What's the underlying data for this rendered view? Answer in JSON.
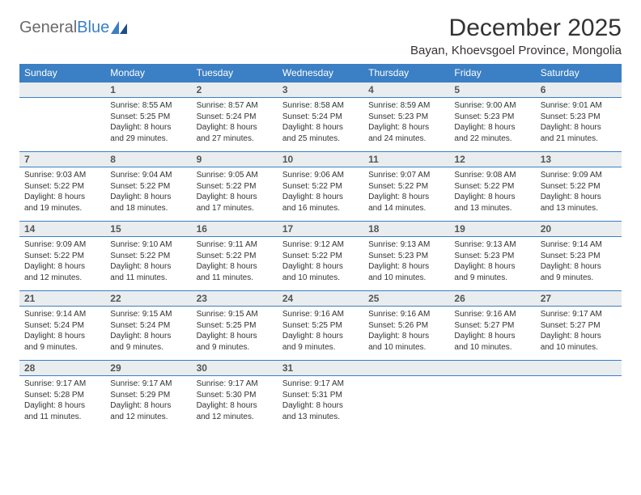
{
  "logo": {
    "text_gray": "General",
    "text_blue": "Blue"
  },
  "header": {
    "month_title": "December 2025",
    "location": "Bayan, Khoevsgoel Province, Mongolia"
  },
  "colors": {
    "header_band": "#3b7fc4",
    "daynum_bg": "#e9edf0",
    "rule": "#3b7fc4",
    "text": "#333333",
    "logo_gray": "#6a6a6a",
    "logo_blue": "#3b7fc4",
    "white": "#ffffff"
  },
  "days_of_week": [
    "Sunday",
    "Monday",
    "Tuesday",
    "Wednesday",
    "Thursday",
    "Friday",
    "Saturday"
  ],
  "weeks": [
    [
      null,
      {
        "n": "1",
        "sr": "Sunrise: 8:55 AM",
        "ss": "Sunset: 5:25 PM",
        "d1": "Daylight: 8 hours",
        "d2": "and 29 minutes."
      },
      {
        "n": "2",
        "sr": "Sunrise: 8:57 AM",
        "ss": "Sunset: 5:24 PM",
        "d1": "Daylight: 8 hours",
        "d2": "and 27 minutes."
      },
      {
        "n": "3",
        "sr": "Sunrise: 8:58 AM",
        "ss": "Sunset: 5:24 PM",
        "d1": "Daylight: 8 hours",
        "d2": "and 25 minutes."
      },
      {
        "n": "4",
        "sr": "Sunrise: 8:59 AM",
        "ss": "Sunset: 5:23 PM",
        "d1": "Daylight: 8 hours",
        "d2": "and 24 minutes."
      },
      {
        "n": "5",
        "sr": "Sunrise: 9:00 AM",
        "ss": "Sunset: 5:23 PM",
        "d1": "Daylight: 8 hours",
        "d2": "and 22 minutes."
      },
      {
        "n": "6",
        "sr": "Sunrise: 9:01 AM",
        "ss": "Sunset: 5:23 PM",
        "d1": "Daylight: 8 hours",
        "d2": "and 21 minutes."
      }
    ],
    [
      {
        "n": "7",
        "sr": "Sunrise: 9:03 AM",
        "ss": "Sunset: 5:22 PM",
        "d1": "Daylight: 8 hours",
        "d2": "and 19 minutes."
      },
      {
        "n": "8",
        "sr": "Sunrise: 9:04 AM",
        "ss": "Sunset: 5:22 PM",
        "d1": "Daylight: 8 hours",
        "d2": "and 18 minutes."
      },
      {
        "n": "9",
        "sr": "Sunrise: 9:05 AM",
        "ss": "Sunset: 5:22 PM",
        "d1": "Daylight: 8 hours",
        "d2": "and 17 minutes."
      },
      {
        "n": "10",
        "sr": "Sunrise: 9:06 AM",
        "ss": "Sunset: 5:22 PM",
        "d1": "Daylight: 8 hours",
        "d2": "and 16 minutes."
      },
      {
        "n": "11",
        "sr": "Sunrise: 9:07 AM",
        "ss": "Sunset: 5:22 PM",
        "d1": "Daylight: 8 hours",
        "d2": "and 14 minutes."
      },
      {
        "n": "12",
        "sr": "Sunrise: 9:08 AM",
        "ss": "Sunset: 5:22 PM",
        "d1": "Daylight: 8 hours",
        "d2": "and 13 minutes."
      },
      {
        "n": "13",
        "sr": "Sunrise: 9:09 AM",
        "ss": "Sunset: 5:22 PM",
        "d1": "Daylight: 8 hours",
        "d2": "and 13 minutes."
      }
    ],
    [
      {
        "n": "14",
        "sr": "Sunrise: 9:09 AM",
        "ss": "Sunset: 5:22 PM",
        "d1": "Daylight: 8 hours",
        "d2": "and 12 minutes."
      },
      {
        "n": "15",
        "sr": "Sunrise: 9:10 AM",
        "ss": "Sunset: 5:22 PM",
        "d1": "Daylight: 8 hours",
        "d2": "and 11 minutes."
      },
      {
        "n": "16",
        "sr": "Sunrise: 9:11 AM",
        "ss": "Sunset: 5:22 PM",
        "d1": "Daylight: 8 hours",
        "d2": "and 11 minutes."
      },
      {
        "n": "17",
        "sr": "Sunrise: 9:12 AM",
        "ss": "Sunset: 5:22 PM",
        "d1": "Daylight: 8 hours",
        "d2": "and 10 minutes."
      },
      {
        "n": "18",
        "sr": "Sunrise: 9:13 AM",
        "ss": "Sunset: 5:23 PM",
        "d1": "Daylight: 8 hours",
        "d2": "and 10 minutes."
      },
      {
        "n": "19",
        "sr": "Sunrise: 9:13 AM",
        "ss": "Sunset: 5:23 PM",
        "d1": "Daylight: 8 hours",
        "d2": "and 9 minutes."
      },
      {
        "n": "20",
        "sr": "Sunrise: 9:14 AM",
        "ss": "Sunset: 5:23 PM",
        "d1": "Daylight: 8 hours",
        "d2": "and 9 minutes."
      }
    ],
    [
      {
        "n": "21",
        "sr": "Sunrise: 9:14 AM",
        "ss": "Sunset: 5:24 PM",
        "d1": "Daylight: 8 hours",
        "d2": "and 9 minutes."
      },
      {
        "n": "22",
        "sr": "Sunrise: 9:15 AM",
        "ss": "Sunset: 5:24 PM",
        "d1": "Daylight: 8 hours",
        "d2": "and 9 minutes."
      },
      {
        "n": "23",
        "sr": "Sunrise: 9:15 AM",
        "ss": "Sunset: 5:25 PM",
        "d1": "Daylight: 8 hours",
        "d2": "and 9 minutes."
      },
      {
        "n": "24",
        "sr": "Sunrise: 9:16 AM",
        "ss": "Sunset: 5:25 PM",
        "d1": "Daylight: 8 hours",
        "d2": "and 9 minutes."
      },
      {
        "n": "25",
        "sr": "Sunrise: 9:16 AM",
        "ss": "Sunset: 5:26 PM",
        "d1": "Daylight: 8 hours",
        "d2": "and 10 minutes."
      },
      {
        "n": "26",
        "sr": "Sunrise: 9:16 AM",
        "ss": "Sunset: 5:27 PM",
        "d1": "Daylight: 8 hours",
        "d2": "and 10 minutes."
      },
      {
        "n": "27",
        "sr": "Sunrise: 9:17 AM",
        "ss": "Sunset: 5:27 PM",
        "d1": "Daylight: 8 hours",
        "d2": "and 10 minutes."
      }
    ],
    [
      {
        "n": "28",
        "sr": "Sunrise: 9:17 AM",
        "ss": "Sunset: 5:28 PM",
        "d1": "Daylight: 8 hours",
        "d2": "and 11 minutes."
      },
      {
        "n": "29",
        "sr": "Sunrise: 9:17 AM",
        "ss": "Sunset: 5:29 PM",
        "d1": "Daylight: 8 hours",
        "d2": "and 12 minutes."
      },
      {
        "n": "30",
        "sr": "Sunrise: 9:17 AM",
        "ss": "Sunset: 5:30 PM",
        "d1": "Daylight: 8 hours",
        "d2": "and 12 minutes."
      },
      {
        "n": "31",
        "sr": "Sunrise: 9:17 AM",
        "ss": "Sunset: 5:31 PM",
        "d1": "Daylight: 8 hours",
        "d2": "and 13 minutes."
      },
      null,
      null,
      null
    ]
  ]
}
